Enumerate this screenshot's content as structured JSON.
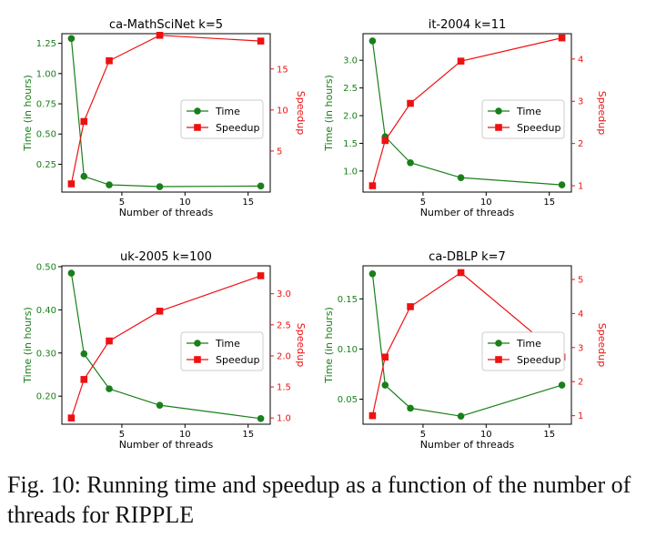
{
  "caption": "Fig. 10: Running time and speedup as a function of the number of threads for RIPPLE",
  "colors": {
    "time": "#1a7f1a",
    "speedup": "#ee1111",
    "axis": "#000000"
  },
  "chart_data": [
    {
      "type": "line",
      "title": "ca-MathSciNet k=5",
      "xlabel": "Number of threads",
      "ylabel_left": "Time (in hours)",
      "ylabel_right": "Speedup",
      "x": [
        1,
        2,
        4,
        8,
        16
      ],
      "xlim": [
        0.25,
        16.75
      ],
      "xticks": [
        5,
        10,
        15
      ],
      "ylim_left": [
        0.02,
        1.33
      ],
      "yticks_left": [
        0.25,
        0.5,
        0.75,
        1.0,
        1.25
      ],
      "ylim_right": [
        0,
        19.3
      ],
      "yticks_right": [
        5,
        10,
        15
      ],
      "series": [
        {
          "name": "Time",
          "axis": "left",
          "marker": "circle",
          "values": [
            1.29,
            0.15,
            0.08,
            0.065,
            0.07
          ]
        },
        {
          "name": "Speedup",
          "axis": "right",
          "marker": "square",
          "values": [
            1.0,
            8.6,
            16.0,
            19.1,
            18.4
          ]
        }
      ],
      "legend": "center-right",
      "grid": false
    },
    {
      "type": "line",
      "title": "it-2004 k=11",
      "xlabel": "Number of threads",
      "ylabel_left": "Time (in hours)",
      "ylabel_right": "Speedup",
      "x": [
        1,
        2,
        4,
        8,
        16
      ],
      "xlim": [
        0.25,
        16.75
      ],
      "xticks": [
        5,
        10,
        15
      ],
      "ylim_left": [
        0.62,
        3.48
      ],
      "yticks_left": [
        1.0,
        1.5,
        2.0,
        2.5,
        3.0
      ],
      "ylim_right": [
        0.85,
        4.6
      ],
      "yticks_right": [
        1,
        2,
        3,
        4
      ],
      "series": [
        {
          "name": "Time",
          "axis": "left",
          "marker": "circle",
          "values": [
            3.35,
            1.62,
            1.15,
            0.88,
            0.75
          ]
        },
        {
          "name": "Speedup",
          "axis": "right",
          "marker": "square",
          "values": [
            1.0,
            2.07,
            2.95,
            3.95,
            4.5
          ]
        }
      ],
      "legend": "center-right",
      "grid": false
    },
    {
      "type": "line",
      "title": "uk-2005 k=100",
      "xlabel": "Number of threads",
      "ylabel_left": "Time (in hours)",
      "ylabel_right": "Speedup",
      "x": [
        1,
        2,
        4,
        8,
        16
      ],
      "xlim": [
        0.25,
        16.75
      ],
      "xticks": [
        5,
        10,
        15
      ],
      "ylim_left": [
        0.135,
        0.502
      ],
      "yticks_left": [
        0.2,
        0.3,
        0.4,
        0.5
      ],
      "ylim_right": [
        0.9,
        3.45
      ],
      "yticks_right": [
        1.0,
        1.5,
        2.0,
        2.5,
        3.0
      ],
      "series": [
        {
          "name": "Time",
          "axis": "left",
          "marker": "circle",
          "values": [
            0.485,
            0.298,
            0.217,
            0.179,
            0.148
          ]
        },
        {
          "name": "Speedup",
          "axis": "right",
          "marker": "square",
          "values": [
            1.0,
            1.62,
            2.24,
            2.72,
            3.29
          ]
        }
      ],
      "legend": "center-right",
      "grid": false
    },
    {
      "type": "line",
      "title": "ca-DBLP k=7",
      "xlabel": "Number of threads",
      "ylabel_left": "Time (in hours)",
      "ylabel_right": "Speedup",
      "x": [
        1,
        2,
        4,
        8,
        16
      ],
      "xlim": [
        0.25,
        16.75
      ],
      "xticks": [
        5,
        10,
        15
      ],
      "ylim_left": [
        0.025,
        0.183
      ],
      "yticks_left": [
        0.05,
        0.1,
        0.15
      ],
      "ylim_right": [
        0.75,
        5.4
      ],
      "yticks_right": [
        1,
        2,
        3,
        4,
        5
      ],
      "series": [
        {
          "name": "Time",
          "axis": "left",
          "marker": "circle",
          "values": [
            0.175,
            0.064,
            0.041,
            0.033,
            0.064
          ]
        },
        {
          "name": "Speedup",
          "axis": "right",
          "marker": "square",
          "values": [
            1.0,
            2.72,
            4.2,
            5.2,
            2.72
          ]
        }
      ],
      "legend": "center-right",
      "grid": false
    }
  ]
}
